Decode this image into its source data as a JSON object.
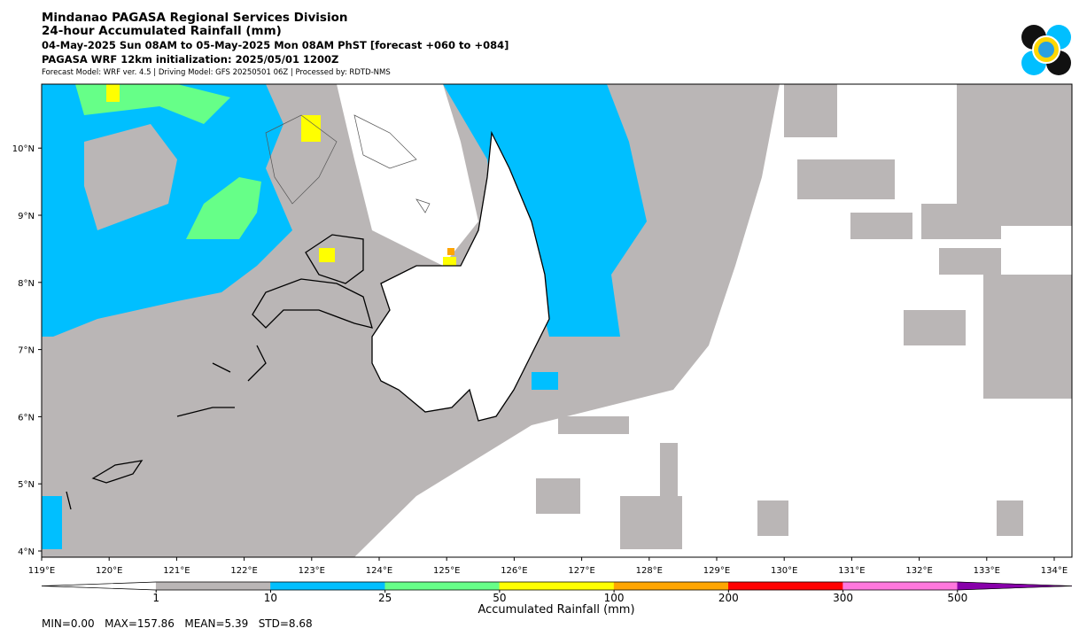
{
  "header": {
    "title": "Mindanao PAGASA Regional Services Division",
    "subtitle": "24-hour Accumulated Rainfall (mm)",
    "period": "04-May-2025 Sun 08AM to 05-May-2025 Mon 08AM PhST [forecast +060 to +084]",
    "init": "PAGASA WRF 12km initialization: 2025/05/01 1200Z",
    "model": "Forecast Model: WRF ver. 4.5 | Driving Model: GFS 20250501 06Z | Processed by: RDTD-NMS"
  },
  "map": {
    "lon_labels": [
      "119°E",
      "120°E",
      "121°E",
      "122°E",
      "123°E",
      "124°E",
      "125°E",
      "126°E",
      "127°E",
      "128°E",
      "129°E",
      "130°E",
      "131°E",
      "132°E",
      "133°E",
      "134°E"
    ],
    "lat_labels": [
      "4°N",
      "5°N",
      "6°N",
      "7°N",
      "8°N",
      "9°N",
      "10°N"
    ]
  },
  "colorbar": {
    "ticks": [
      "1",
      "10",
      "25",
      "50",
      "100",
      "200",
      "300",
      "500"
    ],
    "colors": [
      "#ffffff",
      "#bab6b6",
      "#00bfff",
      "#66ff88",
      "#ffff00",
      "#ffa500",
      "#ff0000",
      "#ff77dd",
      "#8800aa"
    ],
    "label": "Accumulated Rainfall (mm)"
  },
  "stats": "MIN=0.00   MAX=157.86   MEAN=5.39   STD=8.68"
}
